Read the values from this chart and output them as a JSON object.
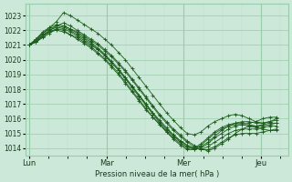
{
  "xlabel": "Pression niveau de la mer( hPa )",
  "bg_color": "#cce8d8",
  "grid_major_color": "#99ccaa",
  "grid_minor_color": "#bbddcc",
  "line_color": "#1a5c1a",
  "ylim": [
    1013.5,
    1023.8
  ],
  "yticks": [
    1014,
    1015,
    1016,
    1017,
    1018,
    1019,
    1020,
    1021,
    1022,
    1023
  ],
  "xtick_labels": [
    "Lun",
    "Mar",
    "Mer",
    "Jeu"
  ],
  "series": [
    [
      1021.0,
      1021.3,
      1021.8,
      1022.2,
      1022.6,
      1023.2,
      1023.0,
      1022.7,
      1022.4,
      1022.1,
      1021.8,
      1021.4,
      1021.0,
      1020.5,
      1020.0,
      1019.4,
      1018.8,
      1018.2,
      1017.6,
      1017.0,
      1016.4,
      1015.9,
      1015.4,
      1015.0,
      1014.9,
      1015.1,
      1015.5,
      1015.8,
      1016.0,
      1016.2,
      1016.3,
      1016.2,
      1016.0,
      1015.8,
      1015.7,
      1015.8,
      1016.0
    ],
    [
      1021.0,
      1021.2,
      1021.6,
      1022.0,
      1022.3,
      1022.5,
      1022.3,
      1022.0,
      1021.7,
      1021.4,
      1021.1,
      1020.7,
      1020.3,
      1019.8,
      1019.3,
      1018.7,
      1018.1,
      1017.5,
      1016.9,
      1016.3,
      1015.8,
      1015.3,
      1014.9,
      1014.5,
      1014.2,
      1014.0,
      1013.8,
      1014.0,
      1014.3,
      1014.6,
      1015.0,
      1015.3,
      1015.5,
      1015.4,
      1015.3,
      1015.2,
      1015.2
    ],
    [
      1021.0,
      1021.2,
      1021.5,
      1021.8,
      1022.1,
      1022.3,
      1022.1,
      1021.9,
      1021.6,
      1021.3,
      1021.0,
      1020.6,
      1020.2,
      1019.7,
      1019.2,
      1018.6,
      1018.0,
      1017.4,
      1016.8,
      1016.2,
      1015.7,
      1015.2,
      1014.8,
      1014.4,
      1014.1,
      1013.9,
      1013.9,
      1014.1,
      1014.4,
      1014.7,
      1014.9,
      1015.0,
      1015.0,
      1015.0,
      1015.1,
      1015.2,
      1015.3
    ],
    [
      1021.0,
      1021.3,
      1021.7,
      1022.0,
      1022.2,
      1022.1,
      1021.9,
      1021.6,
      1021.3,
      1021.0,
      1020.7,
      1020.3,
      1019.8,
      1019.3,
      1018.8,
      1018.2,
      1017.6,
      1017.0,
      1016.4,
      1015.9,
      1015.4,
      1014.9,
      1014.5,
      1014.2,
      1014.0,
      1013.9,
      1014.1,
      1014.4,
      1014.7,
      1015.0,
      1015.2,
      1015.3,
      1015.3,
      1015.3,
      1015.4,
      1015.5,
      1015.5
    ],
    [
      1021.0,
      1021.2,
      1021.6,
      1021.9,
      1022.1,
      1022.0,
      1021.7,
      1021.5,
      1021.2,
      1020.9,
      1020.5,
      1020.1,
      1019.6,
      1019.1,
      1018.5,
      1017.9,
      1017.3,
      1016.7,
      1016.1,
      1015.6,
      1015.1,
      1014.6,
      1014.2,
      1013.9,
      1013.9,
      1014.2,
      1014.6,
      1015.0,
      1015.3,
      1015.5,
      1015.6,
      1015.6,
      1015.5,
      1015.5,
      1015.6,
      1015.7,
      1015.7
    ],
    [
      1021.0,
      1021.4,
      1021.8,
      1022.1,
      1022.3,
      1022.2,
      1022.0,
      1021.7,
      1021.4,
      1021.1,
      1020.7,
      1020.3,
      1019.8,
      1019.3,
      1018.7,
      1018.1,
      1017.5,
      1016.9,
      1016.3,
      1015.7,
      1015.2,
      1014.8,
      1014.4,
      1014.1,
      1013.9,
      1014.0,
      1014.3,
      1014.7,
      1015.0,
      1015.3,
      1015.5,
      1015.6,
      1015.6,
      1015.5,
      1015.5,
      1015.6,
      1015.7
    ],
    [
      1021.0,
      1021.3,
      1021.6,
      1021.9,
      1022.0,
      1021.9,
      1021.7,
      1021.4,
      1021.1,
      1020.8,
      1020.4,
      1020.0,
      1019.5,
      1019.0,
      1018.4,
      1017.8,
      1017.2,
      1016.6,
      1016.1,
      1015.6,
      1015.1,
      1014.7,
      1014.3,
      1014.0,
      1014.0,
      1014.3,
      1014.7,
      1015.1,
      1015.4,
      1015.6,
      1015.7,
      1015.7,
      1015.7,
      1015.8,
      1016.0,
      1016.1,
      1016.1
    ],
    [
      1021.0,
      1021.4,
      1021.9,
      1022.2,
      1022.4,
      1022.3,
      1022.1,
      1021.8,
      1021.5,
      1021.2,
      1020.8,
      1020.4,
      1019.9,
      1019.4,
      1018.8,
      1018.2,
      1017.6,
      1017.0,
      1016.4,
      1015.8,
      1015.3,
      1014.9,
      1014.5,
      1014.2,
      1014.0,
      1014.1,
      1014.4,
      1014.8,
      1015.2,
      1015.5,
      1015.7,
      1015.8,
      1015.8,
      1015.7,
      1015.7,
      1015.8,
      1015.9
    ]
  ]
}
